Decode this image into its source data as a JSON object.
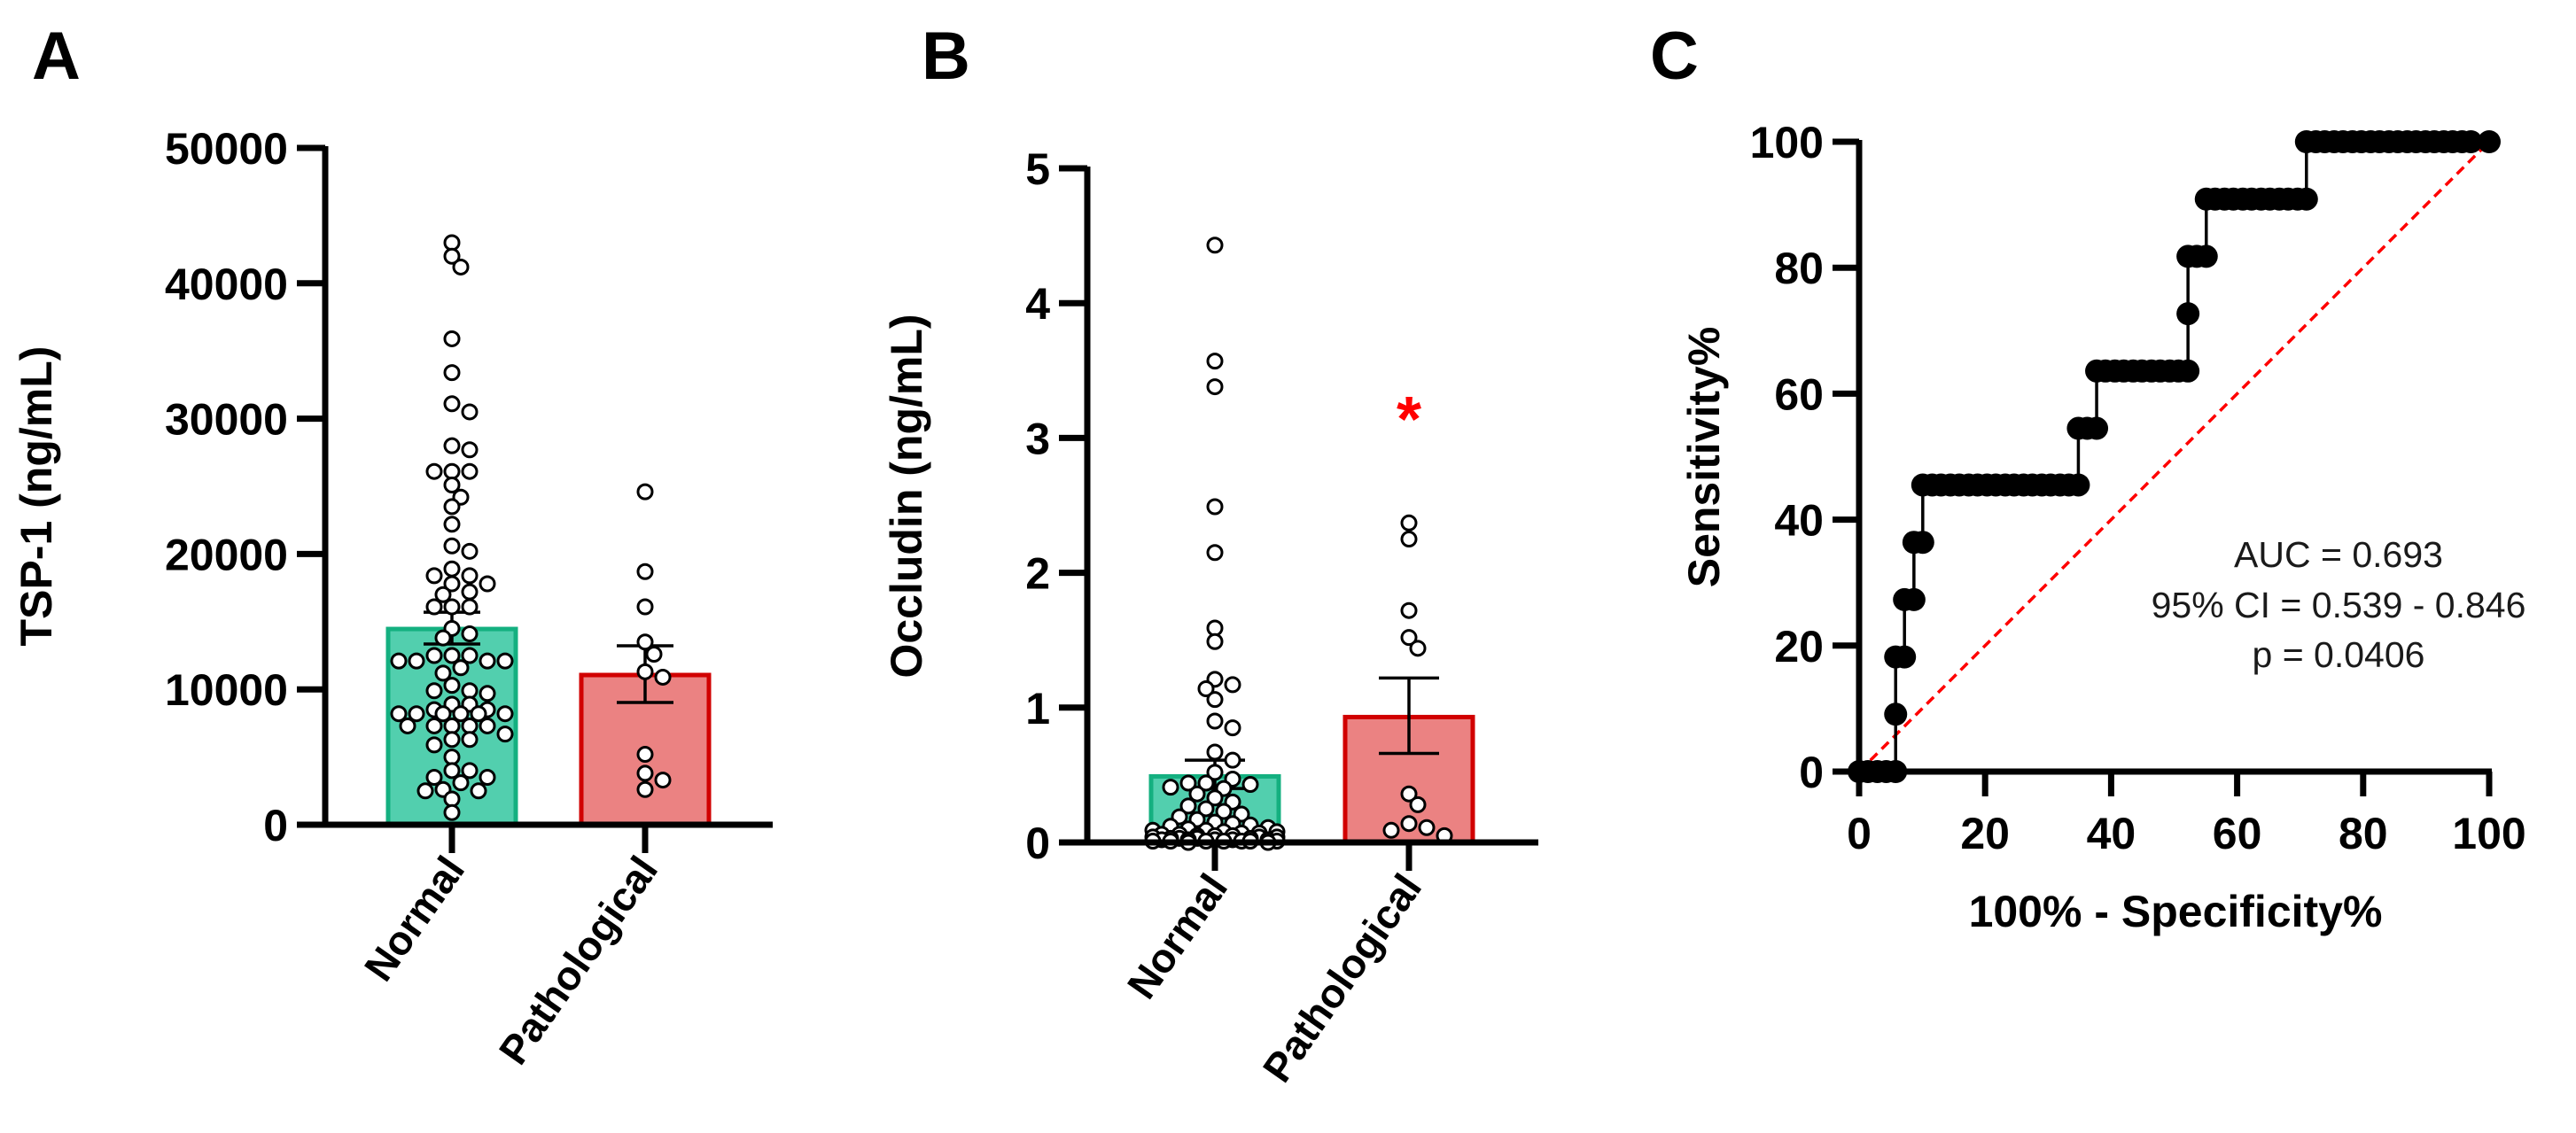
{
  "chart_data": [
    {
      "panel_label": "A",
      "type": "bar",
      "categories": [
        "Normal",
        "Pathological"
      ],
      "ylabel": "TSP-1 (ng/mL)",
      "xlabel": "",
      "ylim": [
        0,
        50000
      ],
      "yticks": [
        0,
        10000,
        20000,
        30000,
        40000,
        50000
      ],
      "ytick_labels": [
        "0",
        "10000",
        "20000",
        "30000",
        "40000",
        "50000"
      ],
      "error_type": "SEM",
      "series": [
        {
          "values": [
            14460,
            11060
          ],
          "error_low": [
            13350,
            9030
          ],
          "error_high": [
            15700,
            13220
          ]
        }
      ],
      "points": [
        [
          43000,
          42000,
          41200,
          35900,
          33400,
          31100,
          30500,
          28000,
          27700,
          26100,
          26100,
          26100,
          25100,
          24200,
          23500,
          22200,
          20600,
          20200,
          18900,
          18400,
          18400,
          17800,
          17800,
          17200,
          17000,
          16100,
          16100,
          16100,
          14500,
          14100,
          13800,
          12500,
          12500,
          12500,
          12100,
          12100,
          12100,
          12100,
          11600,
          11200,
          10300,
          9900,
          9900,
          9700,
          8900,
          8900,
          8500,
          8500,
          8200,
          8200,
          8200,
          8200,
          8200,
          8200,
          7300,
          7300,
          7300,
          7300,
          7300,
          6700,
          6300,
          6300,
          5900,
          5000,
          4000,
          4000,
          3500,
          3500,
          3100,
          2600,
          2500,
          2500,
          1900,
          900
        ],
        [
          24600,
          18700,
          16100,
          13500,
          12600,
          11300,
          10900,
          5200,
          3800,
          3300,
          2600
        ]
      ],
      "colors": {
        "fill": [
          "#52cfae",
          "#eb8282"
        ],
        "stroke": [
          "#14b080",
          "#d10000"
        ]
      }
    },
    {
      "panel_label": "B",
      "type": "bar",
      "categories": [
        "Normal",
        "Pathological"
      ],
      "ylabel": "Occludin (ng/mL)",
      "xlabel": "",
      "ylim": [
        0,
        5
      ],
      "yticks": [
        0,
        1,
        2,
        3,
        4,
        5
      ],
      "ytick_labels": [
        "0",
        "1",
        "2",
        "3",
        "4",
        "5"
      ],
      "error_type": "SEM",
      "series": [
        {
          "values": [
            0.49,
            0.93
          ],
          "error_low": [
            0.4,
            0.66
          ],
          "error_high": [
            0.61,
            1.22
          ]
        }
      ],
      "points": [
        [
          4.43,
          3.57,
          3.38,
          2.49,
          2.15,
          1.59,
          1.49,
          1.21,
          1.17,
          1.14,
          1.06,
          0.9,
          0.85,
          0.67,
          0.61,
          0.52,
          0.47,
          0.44,
          0.44,
          0.43,
          0.41,
          0.4,
          0.36,
          0.33,
          0.3,
          0.27,
          0.25,
          0.23,
          0.21,
          0.19,
          0.17,
          0.15,
          0.14,
          0.13,
          0.12,
          0.11,
          0.1,
          0.09,
          0.09,
          0.08,
          0.08,
          0.07,
          0.07,
          0.06,
          0.06,
          0.05,
          0.05,
          0.05,
          0.04,
          0.04,
          0.04,
          0.03,
          0.03,
          0.03,
          0.03,
          0.02,
          0.02,
          0.02,
          0.02,
          0.02,
          0.01,
          0.01,
          0.01,
          0.01,
          0.01,
          0.01,
          0.01,
          0.0,
          0.0
        ],
        [
          2.37,
          2.25,
          1.72,
          1.52,
          1.44,
          0.36,
          0.28,
          0.14,
          0.11,
          0.09,
          0.05
        ]
      ],
      "significance": {
        "label": "*",
        "category": "Pathological",
        "y": 3.24,
        "color": "#ff0000"
      },
      "colors": {
        "fill": [
          "#52cfae",
          "#eb8282"
        ],
        "stroke": [
          "#14b080",
          "#d10000"
        ]
      }
    },
    {
      "panel_label": "C",
      "type": "line",
      "xlabel": "100% - Specificity%",
      "ylabel": "Sensitivity%",
      "xlim": [
        0,
        100
      ],
      "ylim": [
        0,
        100
      ],
      "xticks": [
        0,
        20,
        40,
        60,
        80,
        100
      ],
      "yticks": [
        0,
        20,
        40,
        60,
        80,
        100
      ],
      "xtick_labels": [
        "0",
        "20",
        "40",
        "60",
        "80",
        "100"
      ],
      "ytick_labels": [
        "0",
        "20",
        "40",
        "60",
        "80",
        "100"
      ],
      "series": [
        {
          "points": [
            [
              0,
              0
            ],
            [
              1.4,
              0
            ],
            [
              2.9,
              0
            ],
            [
              4.3,
              0
            ],
            [
              5.8,
              0
            ],
            [
              5.8,
              9.1
            ],
            [
              5.8,
              18.2
            ],
            [
              7.2,
              18.2
            ],
            [
              7.2,
              27.3
            ],
            [
              8.7,
              27.3
            ],
            [
              8.7,
              36.4
            ],
            [
              10.1,
              36.4
            ],
            [
              10.1,
              45.5
            ],
            [
              11.6,
              45.5
            ],
            [
              13,
              45.5
            ],
            [
              14.5,
              45.5
            ],
            [
              15.9,
              45.5
            ],
            [
              17.4,
              45.5
            ],
            [
              18.8,
              45.5
            ],
            [
              20.3,
              45.5
            ],
            [
              21.7,
              45.5
            ],
            [
              23.2,
              45.5
            ],
            [
              24.6,
              45.5
            ],
            [
              26.1,
              45.5
            ],
            [
              27.5,
              45.5
            ],
            [
              29,
              45.5
            ],
            [
              30.4,
              45.5
            ],
            [
              31.9,
              45.5
            ],
            [
              33.3,
              45.5
            ],
            [
              34.8,
              45.5
            ],
            [
              34.8,
              54.5
            ],
            [
              36.2,
              54.5
            ],
            [
              37.7,
              54.5
            ],
            [
              37.7,
              63.6
            ],
            [
              39.1,
              63.6
            ],
            [
              40.6,
              63.6
            ],
            [
              42,
              63.6
            ],
            [
              43.5,
              63.6
            ],
            [
              44.9,
              63.6
            ],
            [
              46.4,
              63.6
            ],
            [
              47.8,
              63.6
            ],
            [
              49.3,
              63.6
            ],
            [
              50.7,
              63.6
            ],
            [
              52.2,
              63.6
            ],
            [
              52.2,
              72.7
            ],
            [
              52.2,
              81.8
            ],
            [
              53.6,
              81.8
            ],
            [
              55.1,
              81.8
            ],
            [
              55.1,
              90.9
            ],
            [
              56.5,
              90.9
            ],
            [
              58,
              90.9
            ],
            [
              59.4,
              90.9
            ],
            [
              60.9,
              90.9
            ],
            [
              62.3,
              90.9
            ],
            [
              63.8,
              90.9
            ],
            [
              65.2,
              90.9
            ],
            [
              66.7,
              90.9
            ],
            [
              68.1,
              90.9
            ],
            [
              69.6,
              90.9
            ],
            [
              71,
              90.9
            ],
            [
              71,
              100
            ],
            [
              72.5,
              100
            ],
            [
              73.9,
              100
            ],
            [
              75.4,
              100
            ],
            [
              76.8,
              100
            ],
            [
              78.3,
              100
            ],
            [
              79.7,
              100
            ],
            [
              81.2,
              100
            ],
            [
              82.6,
              100
            ],
            [
              84.1,
              100
            ],
            [
              85.5,
              100
            ],
            [
              87,
              100
            ],
            [
              88.4,
              100
            ],
            [
              89.9,
              100
            ],
            [
              91.3,
              100
            ],
            [
              92.8,
              100
            ],
            [
              94.2,
              100
            ],
            [
              95.7,
              100
            ],
            [
              97.1,
              100
            ],
            [
              100,
              100
            ]
          ],
          "color": "#000000"
        }
      ],
      "reference_line": {
        "from": [
          0,
          0
        ],
        "to": [
          100,
          100
        ],
        "style": "dashed",
        "color": "#ff0000"
      },
      "annotations": [
        "AUC = 0.693",
        "95% CI = 0.539 - 0.846",
        "p = 0.0406"
      ]
    }
  ]
}
